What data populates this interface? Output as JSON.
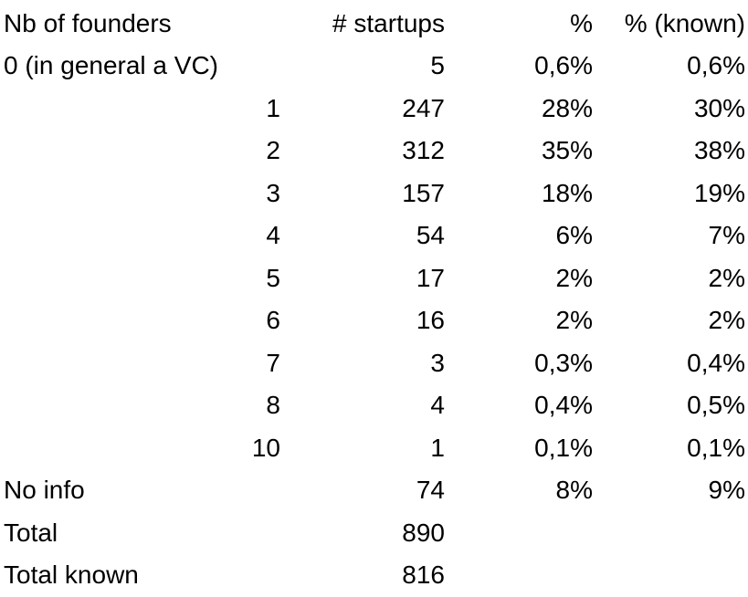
{
  "headers": {
    "nb_founders": "Nb of founders",
    "startups": "# startups",
    "pct": "%",
    "pct_known": "% (known)"
  },
  "rows": [
    {
      "label": "0 (in general a VC)",
      "startups": "5",
      "pct": "0,6%",
      "pct_known": "0,6%"
    },
    {
      "label": "1",
      "startups": "247",
      "pct": "28%",
      "pct_known": "30%"
    },
    {
      "label": "2",
      "startups": "312",
      "pct": "35%",
      "pct_known": "38%"
    },
    {
      "label": "3",
      "startups": "157",
      "pct": "18%",
      "pct_known": "19%"
    },
    {
      "label": "4",
      "startups": "54",
      "pct": "6%",
      "pct_known": "7%"
    },
    {
      "label": "5",
      "startups": "17",
      "pct": "2%",
      "pct_known": "2%"
    },
    {
      "label": "6",
      "startups": "16",
      "pct": "2%",
      "pct_known": "2%"
    },
    {
      "label": "7",
      "startups": "3",
      "pct": "0,3%",
      "pct_known": "0,4%"
    },
    {
      "label": "8",
      "startups": "4",
      "pct": "0,4%",
      "pct_known": "0,5%"
    },
    {
      "label": "10",
      "startups": "1",
      "pct": "0,1%",
      "pct_known": "0,1%"
    },
    {
      "label": "No info",
      "startups": "74",
      "pct": "8%",
      "pct_known": "9%"
    },
    {
      "label": "Total",
      "startups": "890",
      "pct": "",
      "pct_known": ""
    },
    {
      "label": "Total known",
      "startups": "816",
      "pct": "",
      "pct_known": ""
    }
  ]
}
